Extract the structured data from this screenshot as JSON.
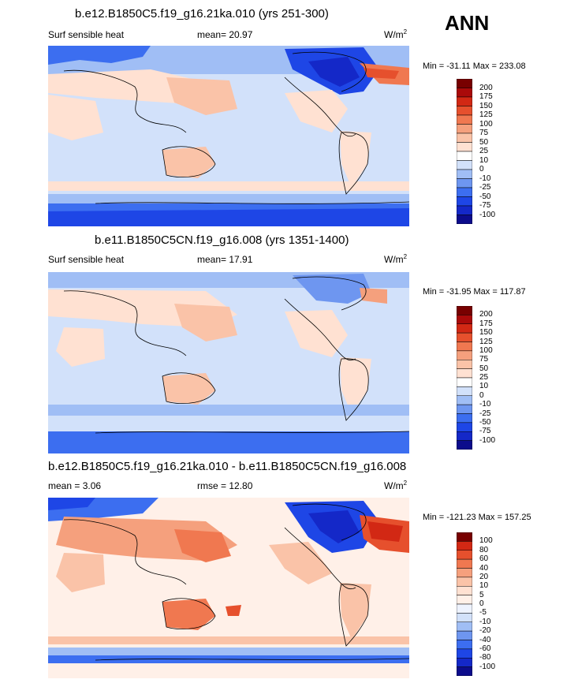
{
  "season_label": "ANN",
  "panels": [
    {
      "title": "b.e12.B1850C5.f19_g16.21ka.010 (yrs 251-300)",
      "left_label": "Surf sensible heat",
      "mean_label": "mean=  20.97",
      "right_label": "",
      "units": "W/m",
      "units_exp": "2",
      "minmax": "Min = -31.11 Max = 233.08"
    },
    {
      "title": "b.e11.B1850C5CN.f19_g16.008 (yrs 1351-1400)",
      "left_label": "Surf sensible heat",
      "mean_label": "mean=  17.91",
      "right_label": "",
      "units": "W/m",
      "units_exp": "2",
      "minmax": "Min = -31.95 Max = 117.87"
    },
    {
      "title": "b.e12.B1850C5.f19_g16.21ka.010 - b.e11.B1850C5CN.f19_g16.008",
      "left_label": "mean =  3.06",
      "mean_label": "rmse =  12.80",
      "right_label": "",
      "units": "W/m",
      "units_exp": "2",
      "minmax": "Min = -121.23 Max = 157.25"
    }
  ],
  "chart_data": [
    {
      "type": "heatmap",
      "title": "b.e12.B1850C5.f19_g16.21ka.010 (yrs 251-300)",
      "variable": "Surf sensible heat",
      "units": "W/m2",
      "mean": 20.97,
      "min": -31.11,
      "max": 233.08,
      "colorbar_levels": [
        -100,
        -75,
        -50,
        -25,
        -10,
        0,
        10,
        25,
        50,
        75,
        100,
        125,
        150,
        175,
        200
      ],
      "colors": [
        "#0c0c8c",
        "#1428c8",
        "#1e46e6",
        "#3c6ef0",
        "#6e96f0",
        "#a0bef5",
        "#d2e1fa",
        "#ffffff",
        "#ffe1d2",
        "#fac3a8",
        "#f5a07d",
        "#f07850",
        "#e6502d",
        "#d22814",
        "#aa0a0a",
        "#780000"
      ]
    },
    {
      "type": "heatmap",
      "title": "b.e11.B1850C5CN.f19_g16.008 (yrs 1351-1400)",
      "variable": "Surf sensible heat",
      "units": "W/m2",
      "mean": 17.91,
      "min": -31.95,
      "max": 117.87,
      "colorbar_levels": [
        -100,
        -75,
        -50,
        -25,
        -10,
        0,
        10,
        25,
        50,
        75,
        100,
        125,
        150,
        175,
        200
      ],
      "colors": [
        "#0c0c8c",
        "#1428c8",
        "#1e46e6",
        "#3c6ef0",
        "#6e96f0",
        "#a0bef5",
        "#d2e1fa",
        "#ffffff",
        "#ffe1d2",
        "#fac3a8",
        "#f5a07d",
        "#f07850",
        "#e6502d",
        "#d22814",
        "#aa0a0a",
        "#780000"
      ]
    },
    {
      "type": "heatmap",
      "title": "b.e12.B1850C5.f19_g16.21ka.010 - b.e11.B1850C5CN.f19_g16.008",
      "units": "W/m2",
      "mean": 3.06,
      "rmse": 12.8,
      "min": -121.23,
      "max": 157.25,
      "colorbar_levels": [
        -100,
        -80,
        -60,
        -40,
        -20,
        -10,
        -5,
        0,
        5,
        10,
        20,
        40,
        60,
        80,
        100
      ],
      "colors": [
        "#0c0c8c",
        "#1428c8",
        "#1e46e6",
        "#3c6ef0",
        "#6e96f0",
        "#a0bef5",
        "#d2e1fa",
        "#eef3ff",
        "#fff0e8",
        "#ffe1d2",
        "#fac3a8",
        "#f5a07d",
        "#f07850",
        "#e6502d",
        "#d22814",
        "#780000"
      ]
    }
  ]
}
